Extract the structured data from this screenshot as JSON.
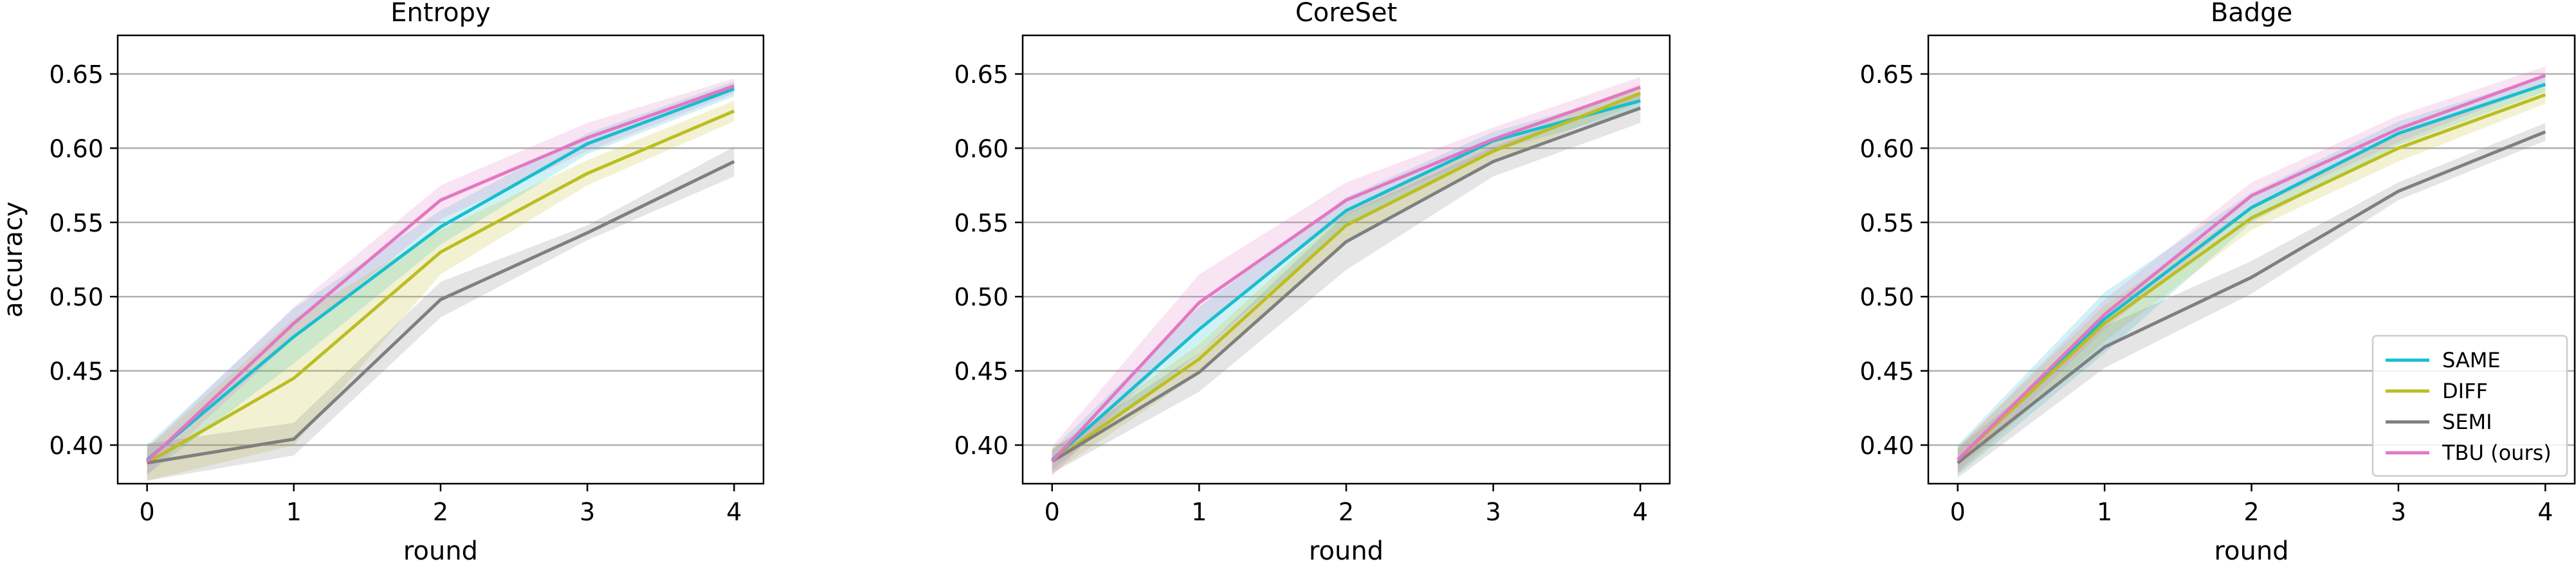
{
  "colors": {
    "SAME": "#17becf",
    "DIFF": "#bcbd22",
    "SEMI": "#7f7f7f",
    "TBU (ours)": "#e377c2"
  },
  "legend": {
    "placement": "lower-right",
    "panel": 2,
    "entries": [
      "SAME",
      "DIFF",
      "SEMI",
      "TBU (ours)"
    ]
  },
  "chart_data": [
    {
      "type": "line",
      "title": "Entropy",
      "xlabel": "round",
      "ylabel": "accuracy",
      "x": [
        0,
        1,
        2,
        3,
        4
      ],
      "xticks": [
        "0",
        "1",
        "2",
        "3",
        "4"
      ],
      "yticks": [
        "0.40",
        "0.45",
        "0.50",
        "0.55",
        "0.60",
        "0.65"
      ],
      "xlim": [
        -0.2,
        4.2
      ],
      "ylim": [
        0.374,
        0.676
      ],
      "grid": "horizontal",
      "series": [
        {
          "name": "SAME",
          "values": [
            0.39,
            0.473,
            0.547,
            0.603,
            0.64
          ],
          "lower": [
            0.38,
            0.455,
            0.535,
            0.596,
            0.635
          ],
          "upper": [
            0.4,
            0.492,
            0.558,
            0.61,
            0.645
          ]
        },
        {
          "name": "DIFF",
          "values": [
            0.388,
            0.445,
            0.53,
            0.583,
            0.625
          ],
          "lower": [
            0.376,
            0.4,
            0.515,
            0.575,
            0.618
          ],
          "upper": [
            0.398,
            0.485,
            0.545,
            0.592,
            0.632
          ]
        },
        {
          "name": "SEMI",
          "values": [
            0.388,
            0.404,
            0.498,
            0.543,
            0.591
          ],
          "lower": [
            0.376,
            0.393,
            0.486,
            0.538,
            0.581
          ],
          "upper": [
            0.401,
            0.415,
            0.51,
            0.548,
            0.601
          ]
        },
        {
          "name": "TBU (ours)",
          "values": [
            0.389,
            0.482,
            0.565,
            0.607,
            0.642
          ],
          "lower": [
            0.38,
            0.472,
            0.552,
            0.598,
            0.637
          ],
          "upper": [
            0.398,
            0.493,
            0.575,
            0.617,
            0.647
          ]
        }
      ]
    },
    {
      "type": "line",
      "title": "CoreSet",
      "xlabel": "round",
      "ylabel": "",
      "x": [
        0,
        1,
        2,
        3,
        4
      ],
      "xticks": [
        "0",
        "1",
        "2",
        "3",
        "4"
      ],
      "yticks": [
        "0.40",
        "0.45",
        "0.50",
        "0.55",
        "0.60",
        "0.65"
      ],
      "xlim": [
        -0.2,
        4.2
      ],
      "ylim": [
        0.374,
        0.676
      ],
      "grid": "horizontal",
      "series": [
        {
          "name": "SAME",
          "values": [
            0.39,
            0.478,
            0.558,
            0.605,
            0.632
          ],
          "lower": [
            0.383,
            0.462,
            0.548,
            0.598,
            0.626
          ],
          "upper": [
            0.397,
            0.493,
            0.567,
            0.611,
            0.639
          ]
        },
        {
          "name": "DIFF",
          "values": [
            0.389,
            0.458,
            0.548,
            0.598,
            0.637
          ],
          "lower": [
            0.381,
            0.448,
            0.538,
            0.591,
            0.631
          ],
          "upper": [
            0.397,
            0.468,
            0.558,
            0.605,
            0.643
          ]
        },
        {
          "name": "SEMI",
          "values": [
            0.389,
            0.449,
            0.537,
            0.591,
            0.627
          ],
          "lower": [
            0.381,
            0.436,
            0.518,
            0.581,
            0.617
          ],
          "upper": [
            0.397,
            0.462,
            0.556,
            0.601,
            0.637
          ]
        },
        {
          "name": "TBU (ours)",
          "values": [
            0.389,
            0.496,
            0.565,
            0.606,
            0.641
          ],
          "lower": [
            0.379,
            0.48,
            0.555,
            0.598,
            0.634
          ],
          "upper": [
            0.399,
            0.515,
            0.577,
            0.614,
            0.648
          ]
        }
      ]
    },
    {
      "type": "line",
      "title": "Badge",
      "xlabel": "round",
      "ylabel": "",
      "x": [
        0,
        1,
        2,
        3,
        4
      ],
      "xticks": [
        "0",
        "1",
        "2",
        "3",
        "4"
      ],
      "yticks": [
        "0.40",
        "0.45",
        "0.50",
        "0.55",
        "0.60",
        "0.65"
      ],
      "xlim": [
        -0.2,
        4.2
      ],
      "ylim": [
        0.374,
        0.676
      ],
      "grid": "horizontal",
      "series": [
        {
          "name": "SAME",
          "values": [
            0.39,
            0.485,
            0.56,
            0.61,
            0.643
          ],
          "lower": [
            0.38,
            0.462,
            0.55,
            0.602,
            0.638
          ],
          "upper": [
            0.4,
            0.503,
            0.57,
            0.618,
            0.649
          ]
        },
        {
          "name": "DIFF",
          "values": [
            0.39,
            0.482,
            0.553,
            0.6,
            0.636
          ],
          "lower": [
            0.381,
            0.47,
            0.545,
            0.591,
            0.63
          ],
          "upper": [
            0.399,
            0.494,
            0.561,
            0.609,
            0.642
          ]
        },
        {
          "name": "SEMI",
          "values": [
            0.388,
            0.466,
            0.513,
            0.571,
            0.611
          ],
          "lower": [
            0.378,
            0.452,
            0.502,
            0.565,
            0.605
          ],
          "upper": [
            0.398,
            0.48,
            0.524,
            0.577,
            0.617
          ]
        },
        {
          "name": "TBU (ours)",
          "values": [
            0.39,
            0.488,
            0.568,
            0.613,
            0.649
          ],
          "lower": [
            0.382,
            0.478,
            0.559,
            0.604,
            0.643
          ],
          "upper": [
            0.398,
            0.498,
            0.577,
            0.622,
            0.655
          ]
        }
      ]
    }
  ]
}
